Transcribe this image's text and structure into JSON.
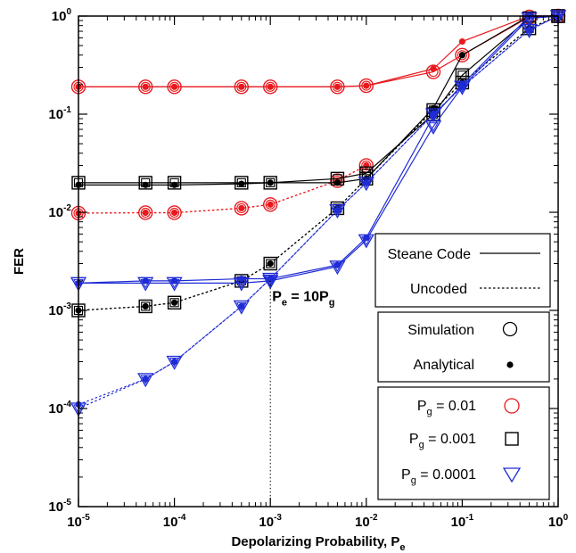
{
  "chart_data": {
    "type": "line",
    "xlabel": "Depolarizing Probability, P",
    "xlabel_sub": "e",
    "ylabel": "FER",
    "x_scale": "log",
    "y_scale": "log",
    "xlim": [
      1e-05,
      1
    ],
    "ylim": [
      1e-05,
      1
    ],
    "x_ticks": [
      {
        "value": 1e-05,
        "base": "10",
        "exp": "-5"
      },
      {
        "value": 0.0001,
        "base": "10",
        "exp": "-4"
      },
      {
        "value": 0.001,
        "base": "10",
        "exp": "-3"
      },
      {
        "value": 0.01,
        "base": "10",
        "exp": "-2"
      },
      {
        "value": 0.1,
        "base": "10",
        "exp": "-1"
      },
      {
        "value": 1,
        "base": "10",
        "exp": "0"
      }
    ],
    "y_ticks": [
      {
        "value": 1e-05,
        "base": "10",
        "exp": "-5"
      },
      {
        "value": 0.0001,
        "base": "10",
        "exp": "-4"
      },
      {
        "value": 0.001,
        "base": "10",
        "exp": "-3"
      },
      {
        "value": 0.01,
        "base": "10",
        "exp": "-2"
      },
      {
        "value": 0.1,
        "base": "10",
        "exp": "-1"
      },
      {
        "value": 1,
        "base": "10",
        "exp": "0"
      }
    ],
    "grid": false,
    "legend_position": "right",
    "annotation": {
      "text_main": "P",
      "sub1": "e",
      "text_mid": " = 10P",
      "sub2": "g",
      "x": 0.001
    },
    "series": [
      {
        "code": "steane",
        "pg": "0.01",
        "kind": "simulation",
        "color": "#e8191e",
        "marker": "circle",
        "x": [
          1e-05,
          5e-05,
          0.0001,
          0.0005,
          0.001,
          0.005,
          0.01,
          0.05,
          0.1,
          0.5,
          1
        ],
        "y": [
          0.19,
          0.19,
          0.19,
          0.19,
          0.19,
          0.19,
          0.195,
          0.27,
          0.4,
          0.98,
          1.0
        ]
      },
      {
        "code": "steane",
        "pg": "0.01",
        "kind": "analytical",
        "color": "#e8191e",
        "marker": "dot",
        "x": [
          1e-05,
          5e-05,
          0.0001,
          0.0005,
          0.001,
          0.005,
          0.01,
          0.05,
          0.1,
          0.5,
          1
        ],
        "y": [
          0.19,
          0.19,
          0.19,
          0.19,
          0.19,
          0.19,
          0.195,
          0.29,
          0.55,
          1.0,
          1.0
        ]
      },
      {
        "code": "uncoded",
        "pg": "0.01",
        "kind": "simulation",
        "color": "#e8191e",
        "marker": "circle",
        "x": [
          1e-05,
          5e-05,
          0.0001,
          0.0005,
          0.001,
          0.005,
          0.01
        ],
        "y": [
          0.0098,
          0.0099,
          0.0099,
          0.011,
          0.012,
          0.021,
          0.03
        ]
      },
      {
        "code": "uncoded",
        "pg": "0.01",
        "kind": "analytical",
        "color": "#e8191e",
        "marker": "dot",
        "x": [
          1e-05,
          5e-05,
          0.0001,
          0.0005,
          0.001,
          0.005,
          0.01
        ],
        "y": [
          0.0098,
          0.0099,
          0.0099,
          0.011,
          0.012,
          0.021,
          0.03
        ]
      },
      {
        "code": "steane",
        "pg": "0.001",
        "kind": "simulation",
        "color": "#000000",
        "marker": "square",
        "x": [
          1e-05,
          5e-05,
          0.0001,
          0.0005,
          0.001,
          0.005,
          0.01,
          0.05,
          0.1,
          0.5,
          1
        ],
        "y": [
          0.02,
          0.02,
          0.02,
          0.02,
          0.02,
          0.022,
          0.025,
          0.1,
          0.25,
          0.95,
          1.0
        ]
      },
      {
        "code": "steane",
        "pg": "0.001",
        "kind": "analytical",
        "color": "#000000",
        "marker": "dot",
        "x": [
          1e-05,
          5e-05,
          0.0001,
          0.0005,
          0.001,
          0.005,
          0.01,
          0.05,
          0.1,
          0.5,
          1
        ],
        "y": [
          0.019,
          0.019,
          0.019,
          0.0195,
          0.02,
          0.02,
          0.022,
          0.115,
          0.4,
          1.0,
          1.0
        ]
      },
      {
        "code": "uncoded",
        "pg": "0.001",
        "kind": "simulation",
        "color": "#000000",
        "marker": "square",
        "x": [
          1e-05,
          5e-05,
          0.0001,
          0.0005,
          0.001,
          0.005,
          0.01,
          0.05,
          0.1,
          0.5,
          1
        ],
        "y": [
          0.001,
          0.0011,
          0.0012,
          0.002,
          0.003,
          0.011,
          0.022,
          0.11,
          0.21,
          0.75,
          1.0
        ]
      },
      {
        "code": "uncoded",
        "pg": "0.001",
        "kind": "analytical",
        "color": "#000000",
        "marker": "dot",
        "x": [
          1e-05,
          5e-05,
          0.0001,
          0.0005,
          0.001,
          0.005,
          0.01,
          0.05,
          0.1,
          0.5,
          1
        ],
        "y": [
          0.001,
          0.0011,
          0.0012,
          0.002,
          0.003,
          0.011,
          0.022,
          0.11,
          0.21,
          0.75,
          1.0
        ]
      },
      {
        "code": "steane",
        "pg": "0.0001",
        "kind": "simulation",
        "color": "#1f2bd6",
        "marker": "triangle",
        "x": [
          1e-05,
          5e-05,
          0.0001,
          0.0005,
          0.001,
          0.005,
          0.01,
          0.05,
          0.1,
          0.5,
          1
        ],
        "y": [
          0.0019,
          0.0019,
          0.0019,
          0.0019,
          0.002,
          0.0028,
          0.0052,
          0.075,
          0.19,
          0.95,
          1.0
        ]
      },
      {
        "code": "steane",
        "pg": "0.0001",
        "kind": "analytical",
        "color": "#1f2bd6",
        "marker": "dot",
        "x": [
          1e-05,
          5e-05,
          0.0001,
          0.0005,
          0.001,
          0.005,
          0.01,
          0.05,
          0.1,
          0.5,
          1
        ],
        "y": [
          0.0019,
          0.002,
          0.002,
          0.0021,
          0.0021,
          0.0029,
          0.0055,
          0.095,
          0.2,
          1.0,
          1.0
        ]
      },
      {
        "code": "uncoded",
        "pg": "0.0001",
        "kind": "simulation",
        "color": "#1f2bd6",
        "marker": "triangle",
        "x": [
          1e-05,
          5e-05,
          0.0001,
          0.0005,
          0.001,
          0.005,
          0.01,
          0.05,
          0.1,
          0.5,
          1
        ],
        "y": [
          0.0001,
          0.0002,
          0.0003,
          0.0011,
          0.0021,
          0.0105,
          0.02,
          0.1,
          0.19,
          0.72,
          1.0
        ]
      },
      {
        "code": "uncoded",
        "pg": "0.0001",
        "kind": "analytical",
        "color": "#1f2bd6",
        "marker": "dot",
        "x": [
          1e-05,
          5e-05,
          0.0001,
          0.0005,
          0.001,
          0.005,
          0.01,
          0.05,
          0.1,
          0.5,
          1
        ],
        "y": [
          0.00011,
          0.0002,
          0.0003,
          0.0011,
          0.0021,
          0.0105,
          0.02,
          0.1,
          0.19,
          0.72,
          1.0
        ]
      }
    ],
    "legend": {
      "line_styles": [
        {
          "label": "Steane Code",
          "style": "solid"
        },
        {
          "label": "Uncoded",
          "style": "dotted"
        }
      ],
      "marker_kinds": [
        {
          "label": "Simulation",
          "marker": "circle"
        },
        {
          "label": "Analytical",
          "marker": "dot"
        }
      ],
      "pg_entries": [
        {
          "prefix": "P",
          "sub": "g",
          "suffix": " = 0.01",
          "marker": "circle",
          "color": "#e8191e"
        },
        {
          "prefix": "P",
          "sub": "g",
          "suffix": " = 0.001",
          "marker": "square",
          "color": "#000000"
        },
        {
          "prefix": "P",
          "sub": "g",
          "suffix": " = 0.0001",
          "marker": "triangle",
          "color": "#1f2bd6"
        }
      ]
    }
  }
}
